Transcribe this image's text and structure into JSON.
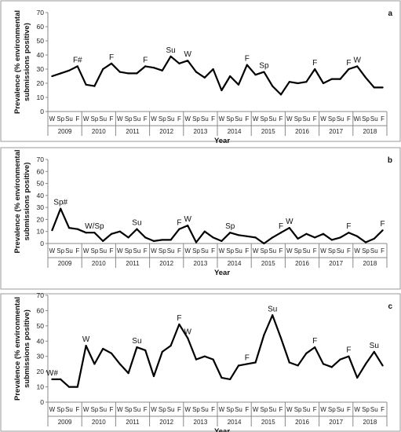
{
  "seasons": [
    "W",
    "Sp",
    "Su",
    "F"
  ],
  "seasons_2018": [
    "Wi",
    "Sp",
    "Su",
    "F"
  ],
  "years": [
    "2009",
    "2010",
    "2011",
    "2012",
    "2013",
    "2014",
    "2015",
    "2016",
    "2017",
    "2018"
  ],
  "y_axis_title_line1": "Prevalence (% environmental",
  "y_axis_title_line2": "submissions positive)",
  "x_axis_title": "Year",
  "chart_data": [
    {
      "type": "line",
      "panel": "a",
      "xlabel": "Year",
      "ylabel": "Prevalence (% environmental submissions positive)",
      "ylim": [
        0,
        70
      ],
      "yticks": [
        0,
        10,
        20,
        30,
        40,
        50,
        60,
        70
      ],
      "season_labels": [
        "W",
        "Sp",
        "Su",
        "F",
        "W",
        "Sp",
        "Su",
        "F",
        "W",
        "Sp",
        "Su",
        "F",
        "W",
        "Sp",
        "Su",
        "F",
        "W",
        "Sp",
        "Su",
        "F",
        "W",
        "Sp",
        "Su",
        "F",
        "W",
        "Sp",
        "Su",
        "F",
        "W",
        "Sp",
        "Su",
        "F",
        "W",
        "Sp",
        "Su",
        "F",
        "Wi",
        "Sp",
        "Su",
        "F"
      ],
      "values": [
        25,
        27,
        29,
        32,
        19,
        18,
        30,
        34,
        28,
        27,
        27,
        32,
        31,
        29,
        39,
        34,
        36,
        28,
        24,
        30,
        15,
        25,
        19,
        33,
        26,
        28,
        18,
        12,
        21,
        20,
        21,
        30,
        20,
        23,
        23,
        30,
        32,
        24,
        17,
        17
      ],
      "annotations": [
        {
          "index": 3,
          "text": "F#"
        },
        {
          "index": 7,
          "text": "F"
        },
        {
          "index": 11,
          "text": "F"
        },
        {
          "index": 14,
          "text": "Su"
        },
        {
          "index": 16,
          "text": "W"
        },
        {
          "index": 23,
          "text": "F"
        },
        {
          "index": 25,
          "text": "Sp"
        },
        {
          "index": 31,
          "text": "F"
        },
        {
          "index": 35,
          "text": "F"
        },
        {
          "index": 36,
          "text": "W"
        }
      ]
    },
    {
      "type": "line",
      "panel": "b",
      "xlabel": "Year",
      "ylabel": "Prevalence (% environmental submissions positive)",
      "ylim": [
        0,
        70
      ],
      "yticks": [
        0,
        10,
        20,
        30,
        40,
        50,
        60,
        70
      ],
      "season_labels": [
        "W",
        "Sp",
        "Su",
        "F",
        "W",
        "Sp",
        "Su",
        "F",
        "W",
        "Sp",
        "Su",
        "F",
        "W",
        "Sp",
        "Su",
        "F",
        "W",
        "Sp",
        "Su",
        "F",
        "W",
        "Sp",
        "Su",
        "F",
        "W",
        "Sp",
        "Su",
        "F",
        "W",
        "Sp",
        "Su",
        "F",
        "W",
        "Sp",
        "Su",
        "F",
        "W",
        "Sp",
        "Su",
        "F"
      ],
      "values": [
        11,
        29,
        13,
        12,
        9,
        9,
        2,
        8,
        10,
        5,
        12,
        5,
        2,
        3,
        3,
        12,
        15,
        1,
        10,
        5,
        2,
        9,
        7,
        6,
        5,
        0,
        5,
        9,
        13,
        4,
        8,
        5,
        8,
        3,
        5,
        9,
        6,
        1,
        4,
        11
      ],
      "annotations": [
        {
          "index": 1,
          "text": "Sp#"
        },
        {
          "index": 5,
          "text": "W/Sp"
        },
        {
          "index": 10,
          "text": "Su"
        },
        {
          "index": 15,
          "text": "F"
        },
        {
          "index": 16,
          "text": "W"
        },
        {
          "index": 21,
          "text": "Sp"
        },
        {
          "index": 27,
          "text": "F"
        },
        {
          "index": 28,
          "text": "W"
        },
        {
          "index": 35,
          "text": "F"
        },
        {
          "index": 39,
          "text": "F"
        }
      ]
    },
    {
      "type": "line",
      "panel": "c",
      "xlabel": "Year",
      "ylabel": "Prevalence (% environmental submissions positive)",
      "ylim": [
        0,
        70
      ],
      "yticks": [
        0,
        10,
        20,
        30,
        40,
        50,
        60,
        70
      ],
      "season_labels": [
        "W",
        "Sp",
        "Su",
        "F",
        "W",
        "Sp",
        "Su",
        "F",
        "W",
        "Sp",
        "Su",
        "F",
        "W",
        "Sp",
        "Su",
        "F",
        "W",
        "Sp",
        "Su",
        "F",
        "W",
        "Sp",
        "Su",
        "F",
        "W",
        "Sp",
        "Su",
        "F",
        "W",
        "Sp",
        "Su",
        "F",
        "W",
        "Sp",
        "Su",
        "F",
        "W",
        "Sp",
        "Su",
        "F"
      ],
      "values": [
        15,
        15,
        10,
        10,
        37,
        25,
        35,
        32,
        25,
        19,
        36,
        34,
        17,
        33,
        37,
        51,
        42,
        28,
        30,
        28,
        16,
        15,
        24,
        25,
        26,
        44,
        57,
        42,
        26,
        24,
        32,
        36,
        25,
        23,
        28,
        30,
        16,
        25,
        33,
        24
      ],
      "annotations": [
        {
          "index": 0,
          "text": "W#"
        },
        {
          "index": 4,
          "text": "W"
        },
        {
          "index": 10,
          "text": "Su"
        },
        {
          "index": 15,
          "text": "F"
        },
        {
          "index": 16,
          "text": "W"
        },
        {
          "index": 23,
          "text": "F"
        },
        {
          "index": 26,
          "text": "Su"
        },
        {
          "index": 31,
          "text": "F"
        },
        {
          "index": 35,
          "text": "F"
        },
        {
          "index": 38,
          "text": "Su"
        }
      ]
    }
  ]
}
